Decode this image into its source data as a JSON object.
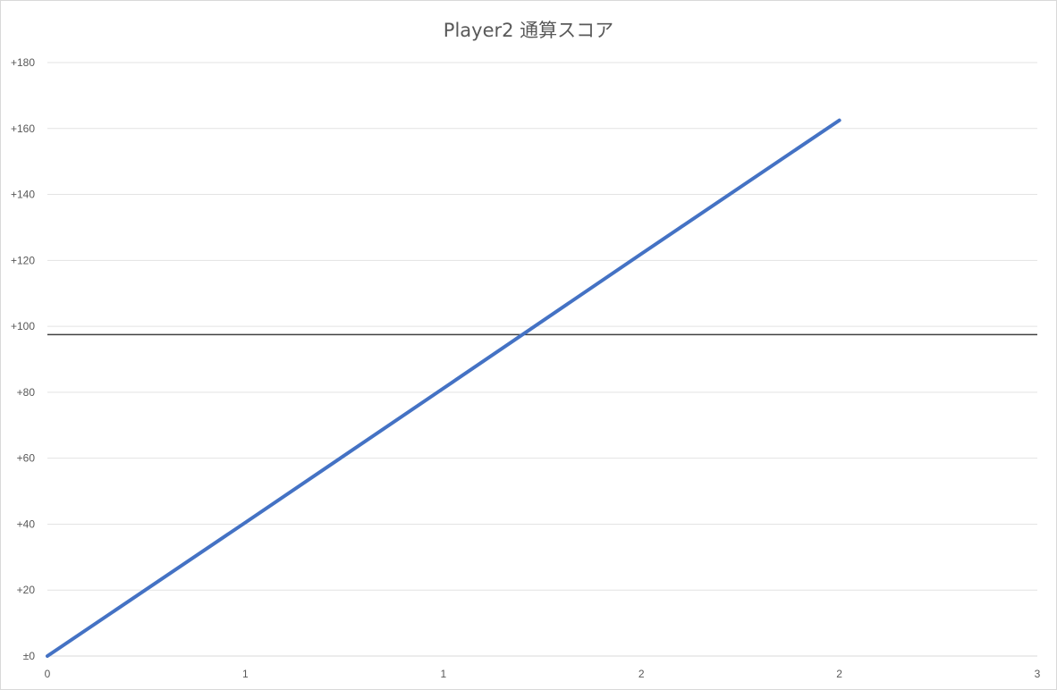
{
  "chart_data": {
    "type": "line",
    "title": "Player2 通算スコア",
    "xlabel": "",
    "ylabel": "",
    "x": [
      0,
      1,
      2,
      3,
      4
    ],
    "x_tick_labels": [
      "0",
      "1",
      "1",
      "2",
      "2",
      "3"
    ],
    "y_tick_labels": [
      "±0",
      "+20",
      "+40",
      "+60",
      "+80",
      "+100",
      "+120",
      "+140",
      "+160",
      "+180"
    ],
    "ylim": [
      0,
      180
    ],
    "grid": true,
    "legend": "none",
    "series": [
      {
        "values": [
          0,
          40.5,
          81.2,
          122,
          162.5
        ],
        "color": "#4472c4"
      }
    ],
    "reference_line": {
      "y": 97.5,
      "color": "#404040"
    }
  }
}
